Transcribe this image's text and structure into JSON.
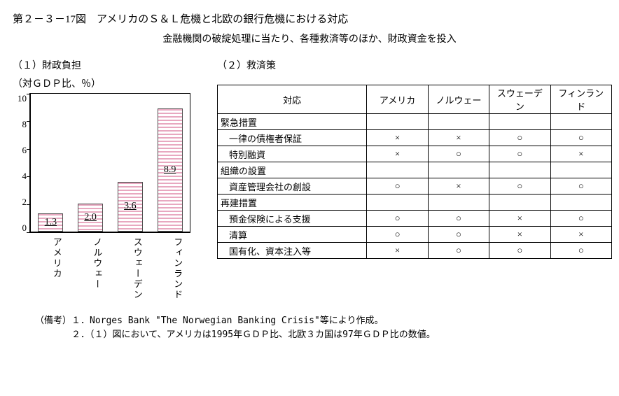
{
  "title": "第２－３－17図　アメリカのＳ＆Ｌ危機と北欧の銀行危機における対応",
  "subtitle": "金融機関の破綻処理に当たり、各種救済等のほか、財政資金を投入",
  "left": {
    "label": "（１）財政負担",
    "unit": "（対ＧＤＰ比、％）",
    "ylim": [
      0,
      10
    ],
    "ytick_step": 2,
    "yticks": [
      "10",
      "8",
      "6",
      "4",
      "2",
      "0"
    ],
    "categories": [
      "アメリカ",
      "ノルウェー",
      "スウェーデン",
      "フィンランド"
    ],
    "values": [
      1.3,
      2.0,
      3.6,
      8.9
    ],
    "value_labels": [
      "1.3",
      "2.0",
      "3.6",
      "8.9"
    ],
    "bar_color": "#e8a8c0",
    "bar_border": "#505050",
    "plot_border": "#000000",
    "background_color": "#ffffff"
  },
  "right": {
    "label": "（２）救済策",
    "header": [
      "対応",
      "アメリカ",
      "ノルウェー",
      "スウェーデン",
      "フィンランド"
    ],
    "rows": [
      {
        "type": "head",
        "cells": [
          "緊急措置",
          "",
          "",
          "",
          ""
        ]
      },
      {
        "type": "sub",
        "cells": [
          "一律の債権者保証",
          "×",
          "×",
          "○",
          "○"
        ]
      },
      {
        "type": "sub",
        "cells": [
          "特別融資",
          "×",
          "○",
          "○",
          "×"
        ]
      },
      {
        "type": "head",
        "cells": [
          "組織の設置",
          "",
          "",
          "",
          ""
        ]
      },
      {
        "type": "sub",
        "cells": [
          "資産管理会社の創設",
          "○",
          "×",
          "○",
          "○"
        ]
      },
      {
        "type": "head",
        "cells": [
          "再建措置",
          "",
          "",
          "",
          ""
        ]
      },
      {
        "type": "sub",
        "cells": [
          "預金保険による支援",
          "○",
          "○",
          "×",
          "○"
        ]
      },
      {
        "type": "sub",
        "cells": [
          "清算",
          "○",
          "○",
          "×",
          "×"
        ]
      },
      {
        "type": "sub",
        "cells": [
          "国有化、資本注入等",
          "×",
          "○",
          "○",
          "○"
        ]
      }
    ]
  },
  "notes": {
    "line1": "（備考）１．Norges Bank \"The Norwegian Banking Crisis\"等により作成。",
    "line2": "　　　　２．（１）図において、アメリカは1995年ＧＤＰ比、北欧３カ国は97年ＧＤＰ比の数値。"
  }
}
